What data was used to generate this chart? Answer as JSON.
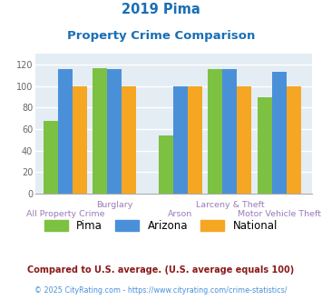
{
  "title_line1": "2019 Pima",
  "title_line2": "Property Crime Comparison",
  "categories": [
    "All Property Crime",
    "Burglary",
    "Arson",
    "Larceny & Theft",
    "Motor Vehicle Theft"
  ],
  "pima": [
    68,
    117,
    54,
    116,
    90
  ],
  "arizona": [
    116,
    116,
    100,
    116,
    113
  ],
  "national": [
    100,
    100,
    100,
    100,
    100
  ],
  "bar_color_pima": "#7dc142",
  "bar_color_arizona": "#4a90d9",
  "bar_color_national": "#f5a623",
  "ylim": [
    0,
    130
  ],
  "yticks": [
    0,
    20,
    40,
    60,
    80,
    100,
    120
  ],
  "background_color": "#e4edf4",
  "grid_color": "#ffffff",
  "title_color": "#1a6eb5",
  "legend_labels": [
    "Pima",
    "Arizona",
    "National"
  ],
  "footnote1": "Compared to U.S. average. (U.S. average equals 100)",
  "footnote2": "© 2025 CityRating.com - https://www.cityrating.com/crime-statistics/",
  "footnote1_color": "#8b1a1a",
  "footnote2_color": "#4a90d9",
  "bar_width": 0.22,
  "group_positions": [
    0.35,
    1.1,
    2.1,
    2.85,
    3.6
  ],
  "xlim": [
    -0.1,
    4.1
  ],
  "figsize": [
    3.55,
    3.3
  ],
  "dpi": 100
}
